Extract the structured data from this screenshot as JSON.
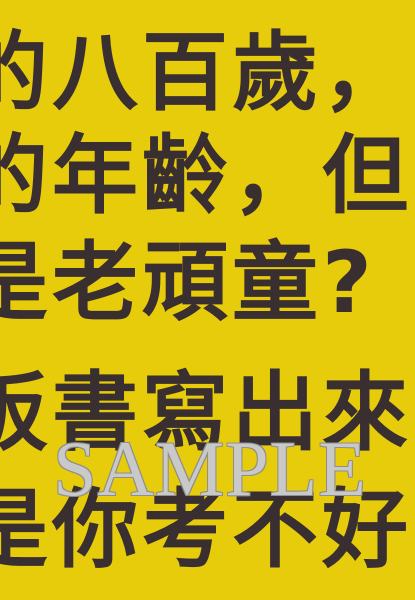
{
  "lines": [
    "的八百歲，",
    "的年齡，但",
    "是老頑童?",
    "板書寫出來",
    "是你考不好"
  ],
  "watermark": "SAMPLE",
  "colors": {
    "background": "#e7cc0c",
    "text": "#3a2f30",
    "watermark_fill": "#c9c9c9",
    "watermark_outline": "#8f8f8f"
  }
}
